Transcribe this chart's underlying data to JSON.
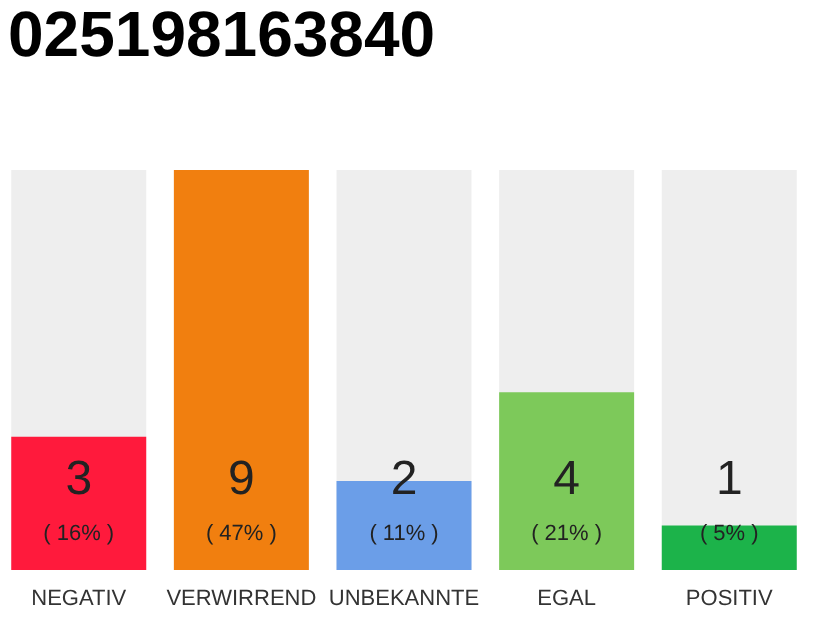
{
  "chart_data": {
    "type": "bar",
    "title": "025198163840",
    "categories": [
      "NEGATIV",
      "VERWIRREND",
      "UNBEKANNTE",
      "EGAL",
      "POSITIV"
    ],
    "values": [
      3,
      9,
      2,
      4,
      1
    ],
    "colors": [
      "#ff1a3c",
      "#f17f0f",
      "#6b9ee8",
      "#7dc95a",
      "#1cb34a"
    ],
    "data_labels": true,
    "annotations": [
      "( 16% )",
      "( 47% )",
      "( 11% )",
      "( 21% )",
      "( 5% )"
    ]
  }
}
